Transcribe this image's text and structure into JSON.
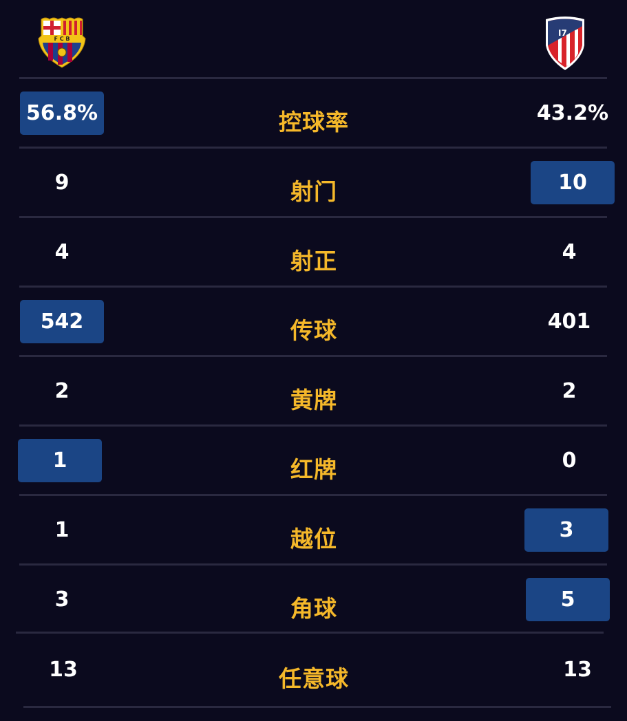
{
  "teams": {
    "home": {
      "logo": "fc-barcelona-crest",
      "logo_text": "FCB"
    },
    "away": {
      "logo": "atletico-madrid-crest"
    }
  },
  "colors": {
    "background": "#0b0a1e",
    "label": "#f5b82a",
    "highlight": "#1b4585",
    "divider": "#2a2940"
  },
  "stats": [
    {
      "label": "控球率",
      "home": "56.8%",
      "away": "43.2%",
      "leader": "home"
    },
    {
      "label": "射门",
      "home": "9",
      "away": "10",
      "leader": "away"
    },
    {
      "label": "射正",
      "home": "4",
      "away": "4",
      "leader": ""
    },
    {
      "label": "传球",
      "home": "542",
      "away": "401",
      "leader": "home"
    },
    {
      "label": "黄牌",
      "home": "2",
      "away": "2",
      "leader": ""
    },
    {
      "label": "红牌",
      "home": "1",
      "away": "0",
      "leader": "home"
    },
    {
      "label": "越位",
      "home": "1",
      "away": "3",
      "leader": "away"
    },
    {
      "label": "角球",
      "home": "3",
      "away": "5",
      "leader": "away"
    },
    {
      "label": "任意球",
      "home": "13",
      "away": "13",
      "leader": ""
    }
  ]
}
